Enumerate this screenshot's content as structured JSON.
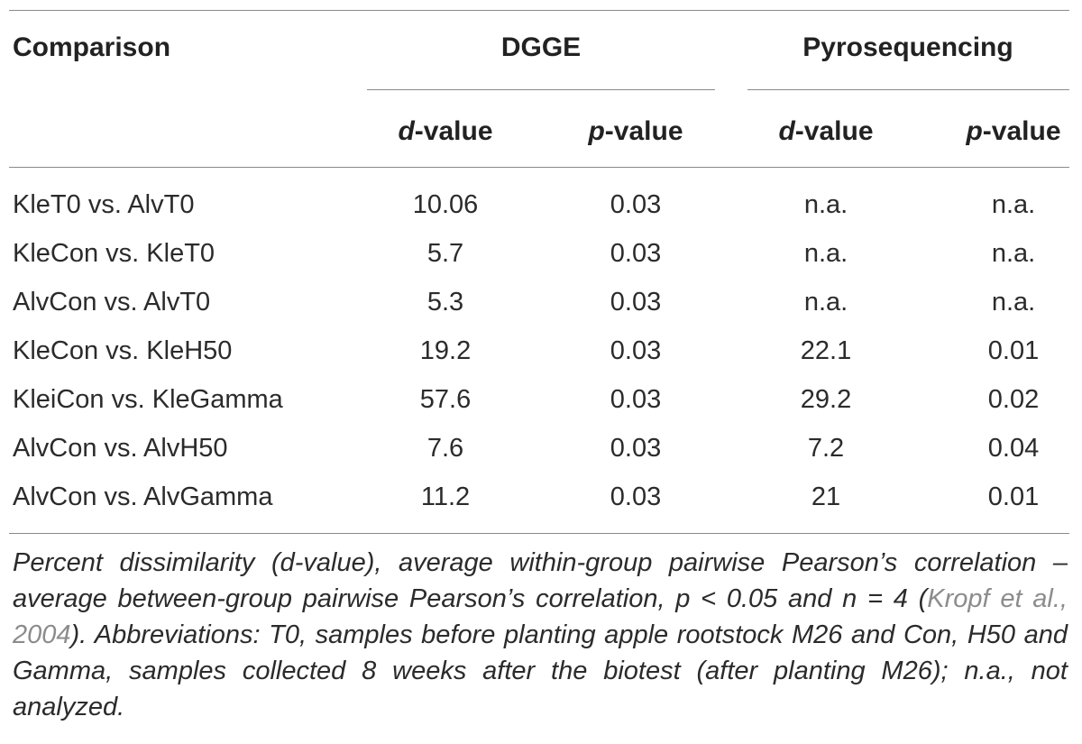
{
  "table": {
    "header": {
      "comparison": "Comparison",
      "group_dgge": "DGGE",
      "group_pyro": "Pyrosequencing",
      "d_prefix": "d",
      "p_prefix": "p",
      "value_suffix": "-value"
    },
    "rows": [
      {
        "comparison": "KleT0 vs. AlvT0",
        "dgge_d": "10.06",
        "dgge_p": "0.03",
        "pyro_d": "n.a.",
        "pyro_p": "n.a."
      },
      {
        "comparison": "KleCon vs. KleT0",
        "dgge_d": "5.7",
        "dgge_p": "0.03",
        "pyro_d": "n.a.",
        "pyro_p": "n.a."
      },
      {
        "comparison": "AlvCon vs. AlvT0",
        "dgge_d": "5.3",
        "dgge_p": "0.03",
        "pyro_d": "n.a.",
        "pyro_p": "n.a."
      },
      {
        "comparison": "KleCon vs. KleH50",
        "dgge_d": "19.2",
        "dgge_p": "0.03",
        "pyro_d": "22.1",
        "pyro_p": "0.01"
      },
      {
        "comparison": "KleiCon vs. KleGamma",
        "dgge_d": "57.6",
        "dgge_p": "0.03",
        "pyro_d": "29.2",
        "pyro_p": "0.02"
      },
      {
        "comparison": "AlvCon vs. AlvH50",
        "dgge_d": "7.6",
        "dgge_p": "0.03",
        "pyro_d": "7.2",
        "pyro_p": "0.04"
      },
      {
        "comparison": "AlvCon vs. AlvGamma",
        "dgge_d": "11.2",
        "dgge_p": "0.03",
        "pyro_d": "21",
        "pyro_p": "0.01"
      }
    ]
  },
  "caption": {
    "part1": "Percent dissimilarity (d-value), average within-group pairwise Pearson’s correlation – average between-group pairwise Pearson’s correlation, p < 0.05 and n = 4 (",
    "citation": "Kropf et al., 2004",
    "part2": "). Abbreviations: T0, samples before planting apple rootstock M26 and Con, H50 and Gamma, samples collected 8 weeks after the biotest (after planting M26); n.a., not analyzed."
  },
  "colors": {
    "text": "#2b2b2b",
    "rule": "#8a8a8a",
    "citation": "#8c8c8c"
  }
}
